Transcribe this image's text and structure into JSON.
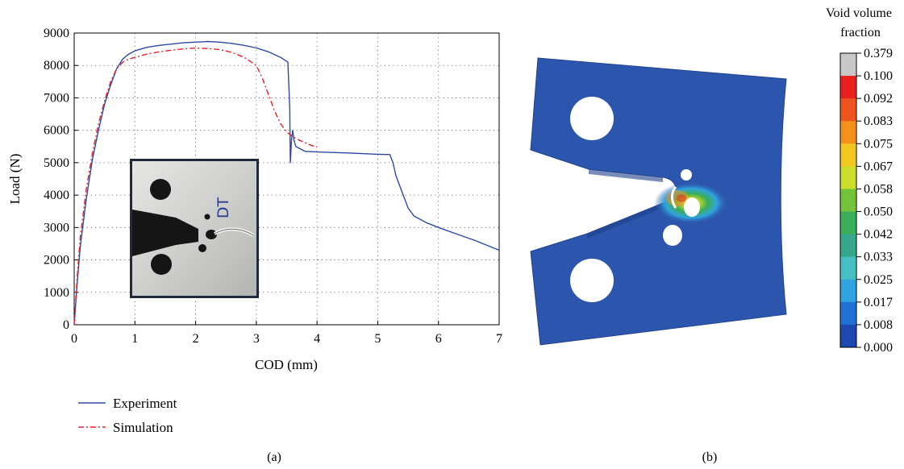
{
  "chart_data": [
    {
      "type": "line",
      "panel_label": "(a)",
      "xlabel": "COD (mm)",
      "ylabel": "Load (N)",
      "xlim": [
        0,
        7
      ],
      "ylim": [
        0,
        9000
      ],
      "xticks": [
        "0",
        "1",
        "2",
        "3",
        "4",
        "5",
        "6",
        "7"
      ],
      "yticks": [
        "0",
        "1000",
        "2000",
        "3000",
        "4000",
        "5000",
        "6000",
        "7000",
        "8000",
        "9000"
      ],
      "grid": true,
      "grid_style": "dotted",
      "legend_position": "below",
      "colors": {
        "experiment": "#2a4aa6",
        "simulation": "#e8212b"
      },
      "series": [
        {
          "name": "Experiment",
          "style": "solid",
          "x": [
            0,
            0.05,
            0.1,
            0.2,
            0.3,
            0.4,
            0.5,
            0.6,
            0.7,
            0.8,
            0.9,
            1.0,
            1.2,
            1.4,
            1.6,
            1.8,
            2.0,
            2.2,
            2.4,
            2.6,
            2.8,
            3.0,
            3.2,
            3.4,
            3.52,
            3.55,
            3.56,
            3.58,
            3.6,
            3.62,
            3.65,
            3.7,
            3.8,
            4.0,
            4.5,
            5.0,
            5.2,
            5.25,
            5.3,
            5.4,
            5.5,
            5.6,
            5.8,
            6.0,
            6.3,
            6.6,
            7.0
          ],
          "y": [
            0,
            1300,
            2400,
            3900,
            5100,
            6000,
            6800,
            7400,
            7900,
            8200,
            8350,
            8450,
            8560,
            8620,
            8660,
            8700,
            8720,
            8740,
            8720,
            8680,
            8620,
            8540,
            8420,
            8250,
            8100,
            6700,
            5000,
            5700,
            6000,
            5700,
            5500,
            5450,
            5350,
            5330,
            5300,
            5260,
            5250,
            5000,
            4600,
            4100,
            3600,
            3350,
            3150,
            3000,
            2800,
            2600,
            2300
          ]
        },
        {
          "name": "Simulation",
          "style": "dash-dot",
          "x": [
            0,
            0.05,
            0.1,
            0.2,
            0.3,
            0.4,
            0.5,
            0.6,
            0.7,
            0.8,
            0.9,
            1.0,
            1.2,
            1.4,
            1.6,
            1.8,
            2.0,
            2.2,
            2.4,
            2.6,
            2.8,
            3.0,
            3.1,
            3.2,
            3.3,
            3.4,
            3.5,
            3.6,
            3.7,
            3.8,
            3.9,
            4.0
          ],
          "y": [
            0,
            1500,
            2700,
            4200,
            5300,
            6200,
            6900,
            7500,
            7900,
            8100,
            8200,
            8250,
            8350,
            8420,
            8470,
            8510,
            8540,
            8520,
            8490,
            8400,
            8250,
            8000,
            7600,
            7100,
            6600,
            6200,
            5950,
            5800,
            5700,
            5620,
            5540,
            5480
          ]
        }
      ],
      "inset_label": "DT"
    },
    {
      "type": "heatmap",
      "panel_label": "(b)",
      "colorbar_title": "Void volume fraction",
      "colorbar_ticks": [
        "0.379",
        "0.100",
        "0.092",
        "0.083",
        "0.075",
        "0.067",
        "0.058",
        "0.050",
        "0.042",
        "0.033",
        "0.025",
        "0.017",
        "0.008",
        "0.000"
      ],
      "colorbar_colors": [
        "#c8c8c8",
        "#e81f1f",
        "#f0541e",
        "#f6901c",
        "#f2c71e",
        "#c9dd2a",
        "#74c43a",
        "#3aae58",
        "#35a88c",
        "#46c0c2",
        "#2fa4de",
        "#1f6fd4",
        "#1e48b0",
        "#1f3596"
      ],
      "specimen_color": "#2c55ad"
    }
  ]
}
